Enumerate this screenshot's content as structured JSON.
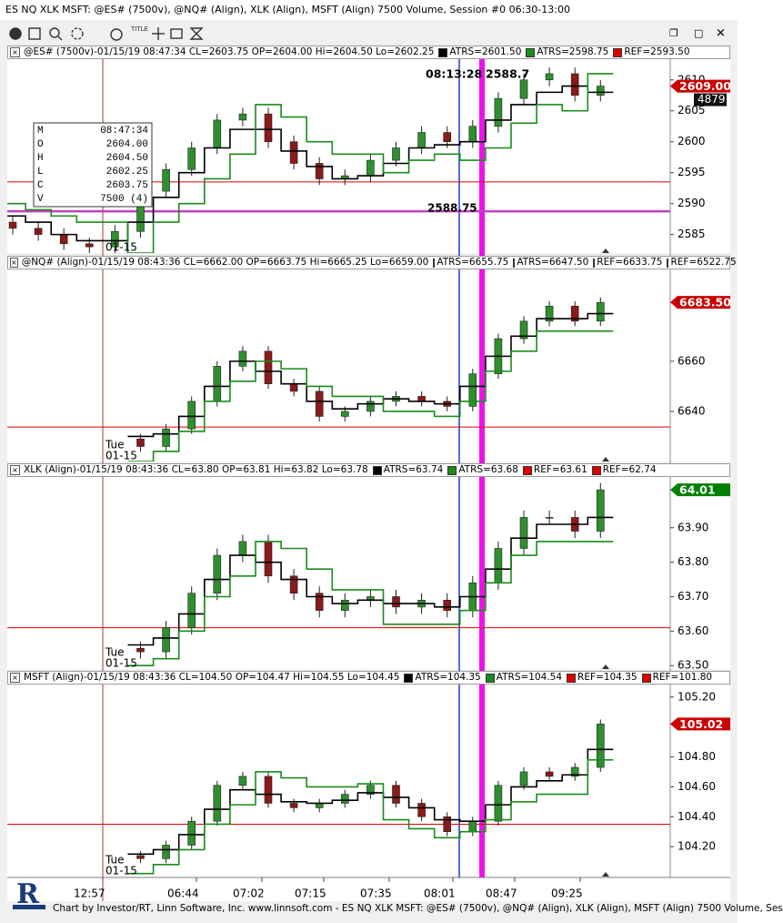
{
  "window": {
    "title": "ES NQ XLK MSFT: @ES# (7500v), @NQ# (Align), XLK (Align), MSFT (Align) 7500 Volume, Session #0 06:30-13:00"
  },
  "footer": "Chart by Investor/RT, Linn Software, Inc. www.linnsoft.com - ES NQ XLK MSFT: @ES# (7500v), @NQ# (Align), XLK (Align), MSFT (Align) 7500 Volume, Ses",
  "time_axis": [
    "12:57",
    "06:44",
    "07:02",
    "07:15",
    "07:35",
    "08:01",
    "08:47",
    "09:25"
  ],
  "data_window": [
    [
      "M",
      "08:47:34"
    ],
    [
      "O",
      "2604.00"
    ],
    [
      "H",
      "2604.50"
    ],
    [
      "L",
      "2602.25"
    ],
    [
      "C",
      "2603.75"
    ],
    [
      "V",
      "7500 (4)"
    ]
  ],
  "chart_data": [
    {
      "type": "candlestick",
      "header": "@ES# (7500v)-01/15/19 08:47:34 CL=2603.75 OP=2604.00 Hi=2604.50 Lo=2602.25",
      "ylim": [
        2582,
        2613.5
      ],
      "yticks": [
        2585,
        2590,
        2595,
        2600,
        2605,
        2610
      ],
      "open": [
        2587,
        2586,
        2585,
        2583.5,
        2583,
        2585.5,
        2592,
        2595.5,
        2599,
        2603.5,
        2604.5,
        2600,
        2596.5,
        2594,
        2594.5,
        2597,
        2599,
        2601.5,
        2600,
        2602.5,
        2607,
        2610,
        2611,
        2607.5
      ],
      "high": [
        2588,
        2587,
        2586,
        2584.5,
        2586.5,
        2593,
        2596.5,
        2600,
        2604.5,
        2605.5,
        2605.5,
        2601,
        2597.5,
        2595.5,
        2598,
        2600,
        2602.5,
        2602.5,
        2603.5,
        2608,
        2611,
        2612,
        2612,
        2610
      ],
      "low": [
        2585,
        2584,
        2582.5,
        2582,
        2582,
        2584.5,
        2591,
        2594.5,
        2598,
        2602.5,
        2599,
        2595.5,
        2593,
        2593,
        2593.5,
        2596,
        2598,
        2599,
        2599,
        2601.5,
        2606,
        2609,
        2606.5,
        2606.5
      ],
      "close": [
        2586,
        2585,
        2583.5,
        2583,
        2585.5,
        2592,
        2595.5,
        2599,
        2603.5,
        2604.5,
        2600,
        2596.5,
        2594,
        2594.5,
        2597,
        2599,
        2601.5,
        2600,
        2602.5,
        2607,
        2610,
        2611,
        2607.5,
        2609
      ],
      "up_color": "#2f8f2f",
      "down_color": "#8b1a1a",
      "series": [
        {
          "name": "ATRS=2601.50",
          "color": "#000000",
          "values": [
            2588,
            2587,
            2585,
            2584,
            2584,
            2587,
            2591,
            2595,
            2599,
            2602,
            2602,
            2598.5,
            2596,
            2594,
            2594.5,
            2596.5,
            2599,
            2599.5,
            2600,
            2603.5,
            2606,
            2608,
            2609,
            2608
          ]
        },
        {
          "name": "ATRS=2598.75",
          "color": "#1a8c1a",
          "values": [
            2590,
            2589,
            2588,
            2587,
            2587,
            2582,
            2587,
            2590,
            2594,
            2598,
            2606,
            2604,
            2600,
            2598,
            2598,
            2595,
            2597,
            2598,
            2597,
            2599,
            2603,
            2606,
            2605,
            2611
          ]
        }
      ],
      "refs": [
        {
          "name": "REF=2593.50",
          "color": "#e00000",
          "value": 2593.5
        }
      ],
      "level": {
        "value": 2588.75,
        "label": "2588.75",
        "color": "#c040c0"
      },
      "cursor_labels": [
        "08:13:28",
        "2588.7"
      ],
      "last": {
        "value": 2609,
        "label": "2609.00",
        "color": "#cc0000"
      },
      "volume_label": "4879",
      "date_label": [
        "01-15"
      ]
    },
    {
      "type": "candlestick",
      "header": "@NQ# (Align)-01/15/19 08:43:36 CL=6662.00 OP=6663.75 Hi=6665.25 Lo=6659.00",
      "ylim": [
        6620,
        6697
      ],
      "yticks": [
        6640,
        6660
      ],
      "open": [
        null,
        null,
        null,
        null,
        null,
        6629,
        6626,
        6633,
        6644,
        6658,
        6664,
        6651,
        6648,
        6638,
        6640,
        6644,
        6646,
        6644,
        6642,
        6655,
        6669,
        6676,
        6682,
        6676
      ],
      "high": [
        null,
        null,
        null,
        null,
        null,
        6631,
        6635,
        6646,
        6660,
        6666,
        6666,
        6653,
        6650,
        6642,
        6646,
        6648,
        6648,
        6646,
        6657,
        6671,
        6678,
        6684,
        6684,
        6685.5
      ],
      "low": [
        null,
        null,
        null,
        null,
        null,
        6624,
        6624,
        6631,
        6642,
        6656,
        6649,
        6646,
        6636,
        6636,
        6638,
        6642,
        6642,
        6640,
        6640,
        6653,
        6667,
        6674,
        6674,
        6674
      ],
      "close": [
        null,
        null,
        null,
        null,
        null,
        6626,
        6633,
        6644,
        6658,
        6664,
        6651,
        6648,
        6638,
        6640,
        6644,
        6646,
        6644,
        6642,
        6655,
        6669,
        6676,
        6682,
        6676,
        6683.5
      ],
      "up_color": "#2f8f2f",
      "down_color": "#8b1a1a",
      "series": [
        {
          "name": "ATRS=6655.75",
          "color": "#000000",
          "values": [
            null,
            null,
            null,
            null,
            null,
            6630,
            6631,
            6638,
            6650,
            6660,
            6656,
            6651,
            6644,
            6641,
            6643,
            6645,
            6644,
            6643,
            6650,
            6662,
            6670,
            6677,
            6677,
            6679
          ]
        },
        {
          "name": "ATRS=6647.50",
          "color": "#1a8c1a",
          "values": [
            null,
            null,
            null,
            null,
            null,
            6620,
            6624,
            6632,
            6644,
            6652,
            6660,
            6657,
            6650,
            6646,
            6646,
            6640,
            6640,
            6638,
            6644,
            6656,
            6664,
            6672,
            6672,
            6672
          ]
        }
      ],
      "refs": [
        {
          "name": "REF=6633.75",
          "color": "#e00000",
          "value": 6633.75
        },
        {
          "name": "REF=6522.75",
          "color": "#e00000"
        }
      ],
      "last": {
        "value": 6683.5,
        "label": "6683.50",
        "color": "#cc0000"
      },
      "date_label": [
        "Tue",
        "01-15"
      ]
    },
    {
      "type": "candlestick",
      "header": "XLK (Align)-01/15/19 08:43:36 CL=63.80 OP=63.81 Hi=63.82 Lo=63.78",
      "ylim": [
        63.49,
        64.05
      ],
      "yticks": [
        {
          "value": 63.5,
          "label": "63.50"
        },
        {
          "value": 63.6,
          "label": "63.60"
        },
        {
          "value": 63.7,
          "label": "63.70"
        },
        {
          "value": 63.8,
          "label": "63.80"
        },
        {
          "value": 63.9,
          "label": "63.90"
        }
      ],
      "open": [
        null,
        null,
        null,
        null,
        null,
        63.55,
        63.54,
        63.61,
        63.71,
        63.82,
        63.86,
        63.76,
        63.71,
        63.66,
        63.69,
        63.7,
        63.67,
        63.69,
        63.66,
        63.74,
        63.84,
        63.93,
        63.93,
        63.89
      ],
      "high": [
        null,
        null,
        null,
        null,
        null,
        63.57,
        63.63,
        63.73,
        63.84,
        63.88,
        63.88,
        63.78,
        63.73,
        63.71,
        63.72,
        63.72,
        63.71,
        63.71,
        63.76,
        63.86,
        63.95,
        63.95,
        63.95,
        64.03
      ],
      "low": [
        null,
        null,
        null,
        null,
        null,
        63.52,
        63.52,
        63.59,
        63.69,
        63.8,
        63.74,
        63.69,
        63.64,
        63.64,
        63.67,
        63.65,
        63.65,
        63.64,
        63.64,
        63.72,
        63.82,
        63.91,
        63.87,
        63.87
      ],
      "close": [
        null,
        null,
        null,
        null,
        null,
        63.54,
        63.61,
        63.71,
        63.82,
        63.86,
        63.76,
        63.71,
        63.66,
        63.69,
        63.7,
        63.67,
        63.69,
        63.66,
        63.74,
        63.84,
        63.93,
        63.93,
        63.89,
        64.01
      ],
      "up_color": "#2f8f2f",
      "down_color": "#8b1a1a",
      "series": [
        {
          "name": "ATRS=63.74",
          "color": "#000000",
          "values": [
            null,
            null,
            null,
            null,
            null,
            63.56,
            63.58,
            63.65,
            63.75,
            63.82,
            63.8,
            63.75,
            63.7,
            63.68,
            63.69,
            63.68,
            63.68,
            63.67,
            63.7,
            63.78,
            63.87,
            63.91,
            63.91,
            63.93
          ]
        },
        {
          "name": "ATRS=63.68",
          "color": "#1a8c1a",
          "values": [
            null,
            null,
            null,
            null,
            null,
            63.5,
            63.52,
            63.6,
            63.7,
            63.76,
            63.86,
            63.84,
            63.78,
            63.72,
            63.72,
            63.62,
            63.62,
            63.62,
            63.66,
            63.74,
            63.82,
            63.86,
            63.86,
            63.86
          ]
        }
      ],
      "refs": [
        {
          "name": "REF=63.61",
          "color": "#e00000",
          "value": 63.61
        },
        {
          "name": "REF=62.74",
          "color": "#e00000"
        }
      ],
      "last": 64.01,
      "last_color": "#008000",
      "date_label": [
        "Tue",
        "01-15"
      ]
    },
    {
      "type": "candlestick",
      "header": "MSFT (Align)-01/15/19 08:43:36 CL=104.50 OP=104.47 Hi=104.55 Lo=104.45",
      "ylim": [
        104.0,
        105.29
      ],
      "yticks": [
        {
          "value": 104.2,
          "label": "104.20"
        },
        {
          "value": 104.4,
          "label": "104.40"
        },
        {
          "value": 104.6,
          "label": "104.60"
        },
        {
          "value": 104.8,
          "label": "104.80"
        },
        {
          "value": 105.2,
          "label": "105.20"
        }
      ],
      "open": [
        null,
        null,
        null,
        null,
        null,
        104.14,
        104.12,
        104.21,
        104.37,
        104.61,
        104.67,
        104.49,
        104.46,
        104.49,
        104.55,
        104.61,
        104.49,
        104.4,
        104.3,
        104.37,
        104.61,
        104.7,
        104.67,
        104.73
      ],
      "high": [
        null,
        null,
        null,
        null,
        null,
        104.17,
        104.24,
        104.4,
        104.64,
        104.7,
        104.7,
        104.52,
        104.52,
        104.58,
        104.64,
        104.64,
        104.52,
        104.43,
        104.4,
        104.64,
        104.73,
        104.73,
        104.76,
        105.05
      ],
      "low": [
        null,
        null,
        null,
        null,
        null,
        104.09,
        104.09,
        104.18,
        104.34,
        104.58,
        104.46,
        104.43,
        104.43,
        104.46,
        104.52,
        104.46,
        104.37,
        104.27,
        104.27,
        104.34,
        104.58,
        104.64,
        104.64,
        104.7
      ],
      "close": [
        null,
        null,
        null,
        null,
        null,
        104.12,
        104.21,
        104.37,
        104.61,
        104.67,
        104.49,
        104.46,
        104.49,
        104.55,
        104.61,
        104.49,
        104.4,
        104.3,
        104.37,
        104.61,
        104.7,
        104.67,
        104.73,
        105.02
      ],
      "up_color": "#2f8f2f",
      "down_color": "#8b1a1a",
      "series": [
        {
          "name": "ATRS=104.35",
          "color": "#000000",
          "values": [
            null,
            null,
            null,
            null,
            null,
            104.15,
            104.18,
            104.28,
            104.45,
            104.58,
            104.55,
            104.5,
            104.49,
            104.51,
            104.56,
            104.53,
            104.46,
            104.38,
            104.37,
            104.48,
            104.6,
            104.64,
            104.68,
            104.85
          ]
        },
        {
          "name": "ATRS=104.54",
          "color": "#1a8c1a",
          "values": [
            null,
            null,
            null,
            null,
            null,
            104.02,
            104.08,
            104.18,
            104.35,
            104.48,
            104.7,
            104.66,
            104.6,
            104.6,
            104.62,
            104.38,
            104.32,
            104.26,
            104.3,
            104.38,
            104.5,
            104.55,
            104.55,
            104.78
          ]
        }
      ],
      "refs": [
        {
          "name": "REF=104.35",
          "color": "#e00000",
          "value": 104.35
        },
        {
          "name": "REF=101.80",
          "color": "#e00000"
        }
      ],
      "last": {
        "value": 105.02,
        "label": "105.02",
        "color": "#cc0000"
      },
      "date_label": [
        "Tue",
        "01-15"
      ]
    }
  ]
}
